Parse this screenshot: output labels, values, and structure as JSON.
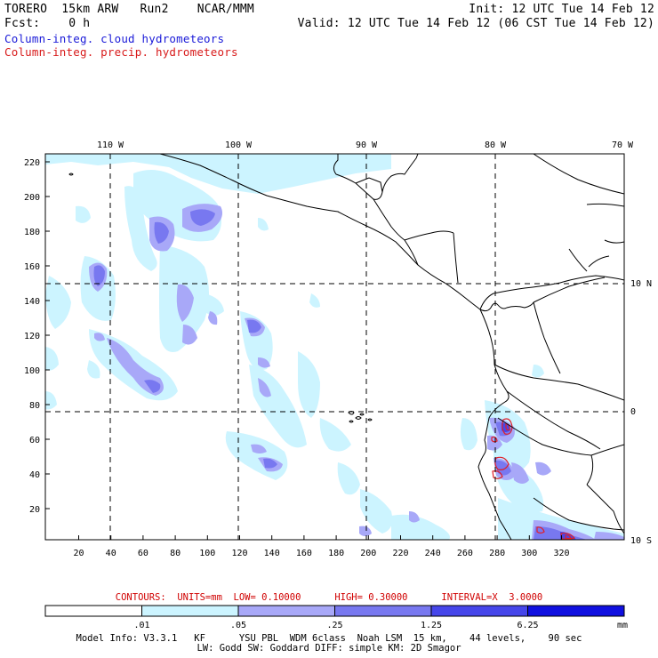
{
  "header": {
    "line1_left": "TORERO  15km ARW   Run2    NCAR/MMM",
    "line1_right": "Init: 12 UTC Tue 14 Feb 12",
    "line2_left": "Fcst:    0 h",
    "line2_right": "Valid: 12 UTC Tue 14 Feb 12 (06 CST Tue 14 Feb 12)",
    "field1": "Column-integ. cloud hydrometeors",
    "field2": "Column-integ. precip. hydrometeors",
    "field1_color": "#1a1ad8",
    "field2_color": "#d81a1a"
  },
  "map": {
    "lon_labels": [
      "110 W",
      "100 W",
      "90 W",
      "80 W",
      "70 W"
    ],
    "lat_labels": [
      "10 N",
      "0",
      "10 S"
    ],
    "y_ticks": [
      "220",
      "200",
      "180",
      "160",
      "140",
      "120",
      "100",
      "80",
      "60",
      "40",
      "20"
    ],
    "x_ticks": [
      "20",
      "40",
      "60",
      "80",
      "100",
      "120",
      "140",
      "160",
      "180",
      "200",
      "220",
      "240",
      "260",
      "280",
      "300",
      "320"
    ]
  },
  "legend": {
    "contours_text": "CONTOURS:  UNITS=mm  LOW= 0.10000      HIGH= 0.30000      INTERVAL=X  3.0000",
    "bin_labels": [
      ".01",
      ".05",
      ".25",
      "1.25",
      "6.25"
    ],
    "units": "mm",
    "colors": [
      "#ffffff",
      "#ccf4ff",
      "#a8a8f8",
      "#7878f0",
      "#4646ea",
      "#1010e0"
    ]
  },
  "model_info": {
    "line1": "Model Info: V3.3.1   KF      YSU PBL  WDM 6class  Noah LSM  15 km,    44 levels,    90 sec",
    "line2": "LW: Godd SW: Goddard DIFF: simple KM: 2D Smagor"
  }
}
